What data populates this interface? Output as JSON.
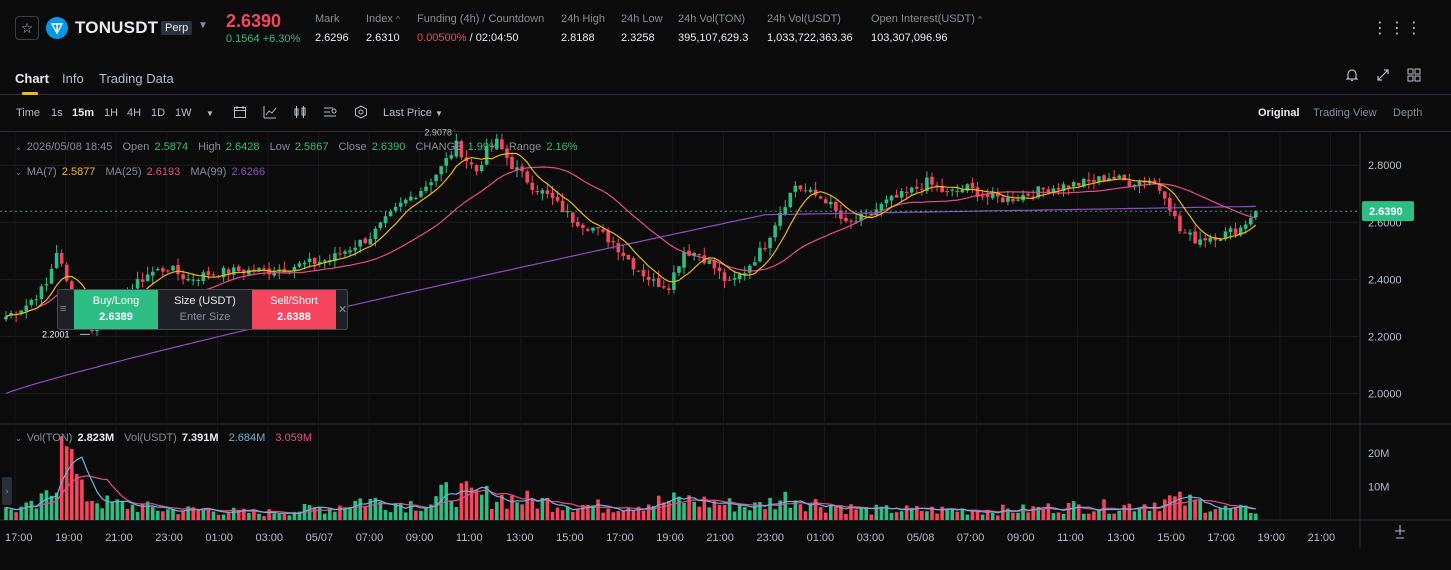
{
  "ticker": {
    "symbol": "TONUSDT",
    "contract_type": "Perp",
    "last_price": "2.6390",
    "change": "0.1564 +6.30%",
    "stats": [
      {
        "label": "Mark",
        "value": "2.6296"
      },
      {
        "label": "Index",
        "value": "2.6310"
      },
      {
        "label": "Funding (4h) / Countdown",
        "value_rate": "0.00500%",
        "value_countdown": " / 02:04:50"
      },
      {
        "label": "24h High",
        "value": "2.8188"
      },
      {
        "label": "24h Low",
        "value": "2.3258"
      },
      {
        "label": "24h Vol(TON)",
        "value": "395,107,629.3"
      },
      {
        "label": "24h Vol(USDT)",
        "value": "1,033,722,363.36"
      },
      {
        "label": "Open Interest(USDT)",
        "value": "103,307,096.96"
      }
    ]
  },
  "tabs": [
    {
      "label": "Chart",
      "active": true
    },
    {
      "label": "Info",
      "active": false
    },
    {
      "label": "Trading Data",
      "active": false
    }
  ],
  "toolbar": {
    "time_label": "Time",
    "intervals": [
      "1s",
      "15m",
      "1H",
      "4H",
      "1D",
      "1W"
    ],
    "active_interval": "15m",
    "price_type": "Last Price",
    "views": [
      "Original",
      "Trading View",
      "Depth"
    ],
    "active_view": "Original"
  },
  "legend": {
    "date": "2026/05/08 18:45",
    "open_label": "Open",
    "open": "2.5874",
    "high_label": "High",
    "high": "2.6428",
    "low_label": "Low",
    "low": "2.5867",
    "close_label": "Close",
    "close": "2.6390",
    "change_label": "CHANGE",
    "change": "1.99%",
    "range_label": "Range",
    "range": "2.16%",
    "ma7_label": "MA(7)",
    "ma7": "2.5877",
    "ma25_label": "MA(25)",
    "ma25": "2.6193",
    "ma99_label": "MA(99)",
    "ma99": "2.6266",
    "vol_label": "Vol(TON)",
    "vol": "2.823M",
    "volusdt_label": "Vol(USDT)",
    "volusdt": "7.391M",
    "vol_ma1": "2.684M",
    "vol_ma2": "3.059M"
  },
  "trade_widget": {
    "buy_label": "Buy/Long",
    "buy_price": "2.6389",
    "size_label": "Size (USDT)",
    "size_placeholder": "Enter Size",
    "sell_label": "Sell/Short",
    "sell_price": "2.6388"
  },
  "colors": {
    "up": "#2ebd85",
    "down": "#f6465d",
    "ma7": "#f0b90b",
    "ma25": "#e84b8a",
    "ma99": "#8e4bc8",
    "vol_ma1": "#6cb4d9",
    "vol_ma2": "#e84b8a",
    "accent": "#f0b90b"
  },
  "chart_data": {
    "type": "candlestick",
    "symbol": "TONUSDT",
    "interval": "15m",
    "price_axis_ticks": [
      "2.8000",
      "2.6000",
      "2.4000",
      "2.2000",
      "2.0000"
    ],
    "current_price_label": "2.6390",
    "ylim": [
      1.9,
      2.92
    ],
    "high_marker": "2.9078",
    "low_marker": "2.2001",
    "volume_axis_ticks": [
      "20M",
      "10M"
    ],
    "time_axis_ticks": [
      "17:00",
      "19:00",
      "21:00",
      "23:00",
      "01:00",
      "03:00",
      "05/07",
      "07:00",
      "09:00",
      "11:00",
      "13:00",
      "15:00",
      "17:00",
      "19:00",
      "21:00",
      "23:00",
      "01:00",
      "03:00",
      "05/08",
      "07:00",
      "09:00",
      "11:00",
      "13:00",
      "15:00",
      "17:00",
      "19:00",
      "21:00"
    ],
    "close_anchors": [
      [
        0,
        2.27
      ],
      [
        4,
        2.31
      ],
      [
        8,
        2.38
      ],
      [
        10,
        2.5
      ],
      [
        12,
        2.39
      ],
      [
        14,
        2.3
      ],
      [
        17,
        2.23
      ],
      [
        20,
        2.28
      ],
      [
        24,
        2.35
      ],
      [
        28,
        2.42
      ],
      [
        32,
        2.44
      ],
      [
        36,
        2.4
      ],
      [
        40,
        2.42
      ],
      [
        46,
        2.43
      ],
      [
        52,
        2.43
      ],
      [
        58,
        2.45
      ],
      [
        64,
        2.47
      ],
      [
        72,
        2.55
      ],
      [
        78,
        2.66
      ],
      [
        83,
        2.73
      ],
      [
        86,
        2.79
      ],
      [
        89,
        2.87
      ],
      [
        91,
        2.82
      ],
      [
        93,
        2.78
      ],
      [
        95,
        2.85
      ],
      [
        97,
        2.88
      ],
      [
        100,
        2.8
      ],
      [
        104,
        2.73
      ],
      [
        108,
        2.68
      ],
      [
        112,
        2.61
      ],
      [
        116,
        2.58
      ],
      [
        120,
        2.53
      ],
      [
        124,
        2.45
      ],
      [
        128,
        2.39
      ],
      [
        131,
        2.38
      ],
      [
        134,
        2.5
      ],
      [
        137,
        2.49
      ],
      [
        140,
        2.44
      ],
      [
        143,
        2.38
      ],
      [
        146,
        2.43
      ],
      [
        150,
        2.52
      ],
      [
        153,
        2.64
      ],
      [
        156,
        2.73
      ],
      [
        159,
        2.7
      ],
      [
        162,
        2.68
      ],
      [
        166,
        2.59
      ],
      [
        170,
        2.62
      ],
      [
        174,
        2.67
      ],
      [
        178,
        2.7
      ],
      [
        182,
        2.74
      ],
      [
        186,
        2.7
      ],
      [
        190,
        2.72
      ],
      [
        194,
        2.69
      ],
      [
        198,
        2.68
      ],
      [
        202,
        2.7
      ],
      [
        206,
        2.72
      ],
      [
        210,
        2.73
      ],
      [
        214,
        2.74
      ],
      [
        218,
        2.76
      ],
      [
        222,
        2.74
      ],
      [
        226,
        2.75
      ],
      [
        229,
        2.7
      ],
      [
        232,
        2.57
      ],
      [
        235,
        2.54
      ],
      [
        238,
        2.55
      ],
      [
        241,
        2.56
      ],
      [
        244,
        2.58
      ],
      [
        247,
        2.64
      ]
    ],
    "volume_anchors": [
      [
        0,
        3
      ],
      [
        6,
        4
      ],
      [
        9,
        8
      ],
      [
        11,
        22
      ],
      [
        13,
        17
      ],
      [
        15,
        8
      ],
      [
        20,
        5
      ],
      [
        26,
        4
      ],
      [
        32,
        3
      ],
      [
        40,
        3
      ],
      [
        50,
        2
      ],
      [
        58,
        3
      ],
      [
        65,
        4
      ],
      [
        70,
        6
      ],
      [
        78,
        5
      ],
      [
        84,
        5
      ],
      [
        88,
        9
      ],
      [
        92,
        7
      ],
      [
        96,
        7
      ],
      [
        102,
        6
      ],
      [
        110,
        5
      ],
      [
        118,
        4
      ],
      [
        126,
        5
      ],
      [
        134,
        6
      ],
      [
        140,
        5
      ],
      [
        148,
        4
      ],
      [
        155,
        7
      ],
      [
        160,
        5
      ],
      [
        170,
        3
      ],
      [
        180,
        3
      ],
      [
        190,
        3
      ],
      [
        200,
        3
      ],
      [
        210,
        4
      ],
      [
        220,
        4
      ],
      [
        226,
        5
      ],
      [
        230,
        6
      ],
      [
        236,
        5
      ],
      [
        242,
        3
      ],
      [
        247,
        3
      ]
    ]
  }
}
